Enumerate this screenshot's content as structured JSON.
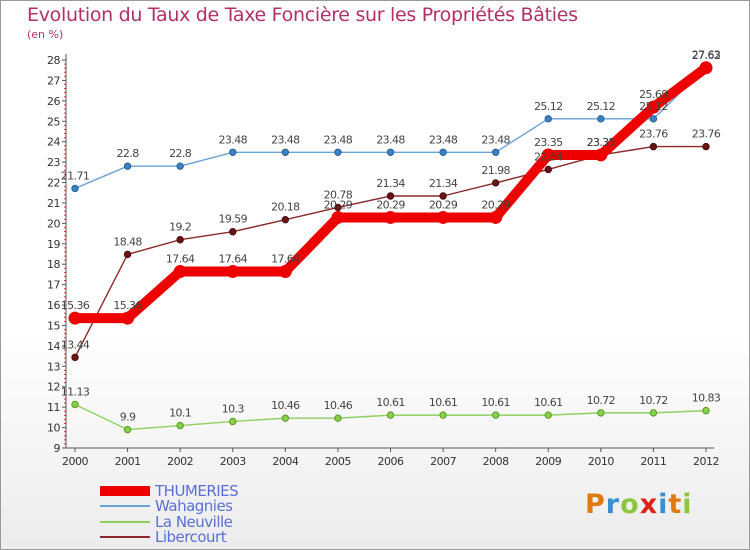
{
  "title": "Evolution du Taux de Taxe Foncière sur les Propriétés Bâties",
  "subtitle": "(en %)",
  "logo": {
    "text": "Proxiti",
    "letter_colors": [
      "#e07a10",
      "#3a8fd0",
      "#8dc63f",
      "#e0201a",
      "#3a8fd0",
      "#e07a10",
      "#8dc63f"
    ]
  },
  "chart_data": {
    "type": "line",
    "title": "Evolution du Taux de Taxe Foncière sur les Propriétés Bâties",
    "ylabel": "(en %)",
    "xlabel": "",
    "x": [
      "2000",
      "2001",
      "2002",
      "2003",
      "2004",
      "2005",
      "2006",
      "2007",
      "2008",
      "2009",
      "2010",
      "2011",
      "2012"
    ],
    "ylim": [
      9,
      28
    ],
    "yticks": [
      "9",
      "10",
      "11",
      "12",
      "13",
      "14",
      "15",
      "16",
      "17",
      "18",
      "19",
      "20",
      "21",
      "22",
      "23",
      "24",
      "25",
      "26",
      "27",
      "28"
    ],
    "grid": false,
    "legend_position": "bottom-left",
    "series": [
      {
        "name": "THUMERIES",
        "color": "#ee0000",
        "labels": [
          "15.36",
          "15.36",
          "17.64",
          "17.64",
          "17.64",
          "20.29",
          "20.29",
          "20.29",
          "20.29",
          "23.35",
          "23.35",
          "25.69",
          "27.62"
        ],
        "values": [
          15.36,
          15.36,
          17.64,
          17.64,
          17.64,
          20.29,
          20.29,
          20.29,
          20.29,
          23.35,
          23.35,
          25.69,
          27.62
        ]
      },
      {
        "name": "Wahagnies",
        "color": "#6aa3d5",
        "labels": [
          "21.71",
          "22.8",
          "22.8",
          "23.48",
          "23.48",
          "23.48",
          "23.48",
          "23.48",
          "23.48",
          "25.12",
          "25.12",
          "25.12",
          "27.63"
        ],
        "values": [
          21.71,
          22.8,
          22.8,
          23.48,
          23.48,
          23.48,
          23.48,
          23.48,
          23.48,
          25.12,
          25.12,
          25.12,
          27.63
        ]
      },
      {
        "name": "La Neuville",
        "color": "#8fd060",
        "labels": [
          "11.13",
          "9.9",
          "10.1",
          "10.3",
          "10.46",
          "10.46",
          "10.61",
          "10.61",
          "10.61",
          "10.61",
          "10.72",
          "10.72",
          "10.83"
        ],
        "values": [
          11.13,
          9.9,
          10.1,
          10.3,
          10.46,
          10.46,
          10.61,
          10.61,
          10.61,
          10.61,
          10.72,
          10.72,
          10.83
        ]
      },
      {
        "name": "Libercourt",
        "color": "#8a2a2a",
        "labels": [
          "13.44",
          "18.48",
          "19.2",
          "19.59",
          "20.18",
          "20.78",
          "21.34",
          "21.34",
          "21.98",
          "22.64",
          "23.35",
          "23.76",
          "23.76"
        ],
        "values": [
          13.44,
          18.48,
          19.2,
          19.59,
          20.18,
          20.78,
          21.34,
          21.34,
          21.98,
          22.64,
          23.35,
          23.76,
          23.76
        ]
      }
    ]
  }
}
